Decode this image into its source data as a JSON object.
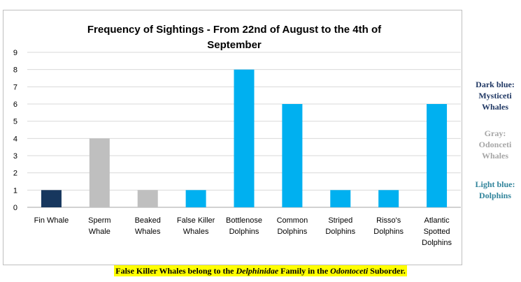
{
  "chart_data": {
    "type": "bar",
    "title_lines": [
      "Frequency of Sightings - From 22nd of August to the 4th of",
      "September"
    ],
    "categories": [
      [
        "Fin Whale"
      ],
      [
        "Sperm",
        "Whale"
      ],
      [
        "Beaked",
        "Whales"
      ],
      [
        "False Killer",
        "Whales"
      ],
      [
        "Bottlenose",
        "Dolphins"
      ],
      [
        "Common",
        "Dolphins"
      ],
      [
        "Striped",
        "Dolphins"
      ],
      [
        "Risso's",
        "Dolphins"
      ],
      [
        "Atlantic",
        "Spotted",
        "Dolphins"
      ]
    ],
    "values": [
      1,
      4,
      1,
      1,
      8,
      6,
      1,
      1,
      6
    ],
    "groups": [
      "Mysticeti",
      "Odonceti",
      "Odonceti",
      "Dolphins",
      "Dolphins",
      "Dolphins",
      "Dolphins",
      "Dolphins",
      "Dolphins"
    ],
    "colors": {
      "Mysticeti": "#17375e",
      "Odonceti": "#bfbfbf",
      "Dolphins": "#00b0f0"
    },
    "ylim": [
      0,
      9
    ],
    "yticks": [
      0,
      1,
      2,
      3,
      4,
      5,
      6,
      7,
      8,
      9
    ],
    "grid": true,
    "xlabel": "",
    "ylabel": ""
  },
  "legend_notes": {
    "dark": [
      "Dark blue:",
      "Mysticeti",
      "Whales"
    ],
    "gray": [
      "Gray:",
      "Odonceti",
      "Whales"
    ],
    "light": [
      "Light blue:",
      "Dolphins"
    ]
  },
  "footnote": {
    "prefix": "False Killer Whales belong to the ",
    "family": "Delphinidae",
    "middle": " Family in the ",
    "suborder": "Odontoceti",
    "suffix": " Suborder."
  }
}
